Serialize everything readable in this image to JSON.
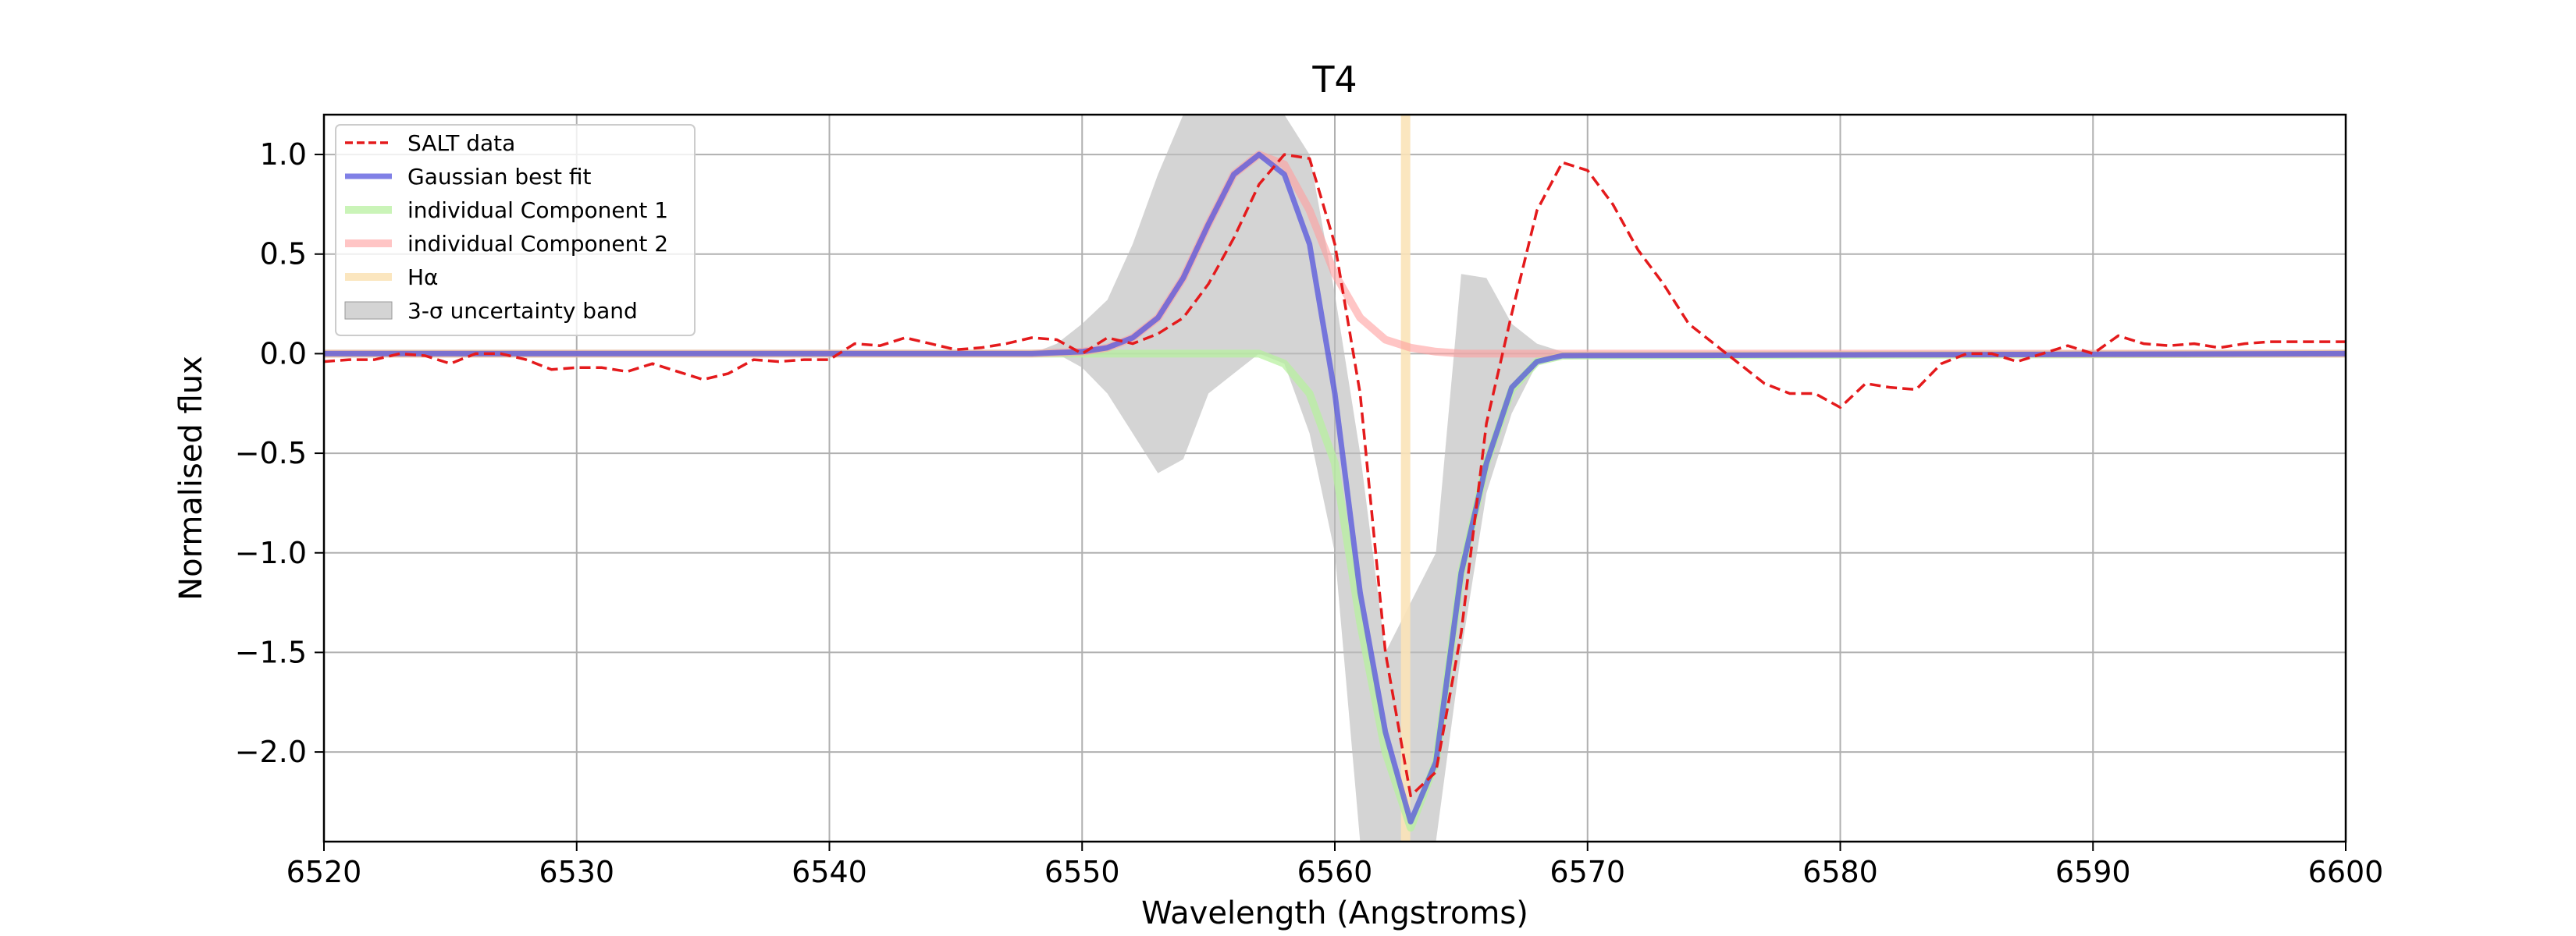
{
  "chart_data": {
    "type": "line",
    "title": "T4",
    "xlabel": "Wavelength (Angstroms)",
    "ylabel": "Normalised flux",
    "xlim": [
      6520,
      6600
    ],
    "ylim": [
      -2.45,
      1.2
    ],
    "xticks": [
      6520,
      6530,
      6540,
      6550,
      6560,
      6570,
      6580,
      6590,
      6600
    ],
    "xtick_labels": [
      "6520",
      "6530",
      "6540",
      "6550",
      "6560",
      "6570",
      "6580",
      "6590",
      "6600"
    ],
    "yticks": [
      1.0,
      0.5,
      0.0,
      -0.5,
      -1.0,
      -1.5,
      -2.0
    ],
    "ytick_labels": [
      "1.0",
      "0.5",
      "0.0",
      "−0.5",
      "−1.0",
      "−1.5",
      "−2.0"
    ],
    "grid": true,
    "legend_position": "top-left",
    "legend": [
      {
        "label": "SALT data",
        "style": "dashed",
        "color": "#e41a1c"
      },
      {
        "label": "Gaussian best fit",
        "style": "solid",
        "color": "#7b7be6"
      },
      {
        "label": "individual Component 1",
        "style": "solid",
        "color": "#c6f0b0"
      },
      {
        "label": "individual Component 2",
        "style": "solid",
        "color": "#ffb8b8"
      },
      {
        "label": "Hα",
        "style": "solid",
        "color": "#fde9c6"
      },
      {
        "label": "3-σ uncertainty band",
        "style": "patch",
        "color": "#d3d3d3"
      }
    ],
    "h_alpha": 6562.8,
    "band": {
      "x": [
        6520,
        6548,
        6549,
        6550,
        6551,
        6552,
        6553,
        6554,
        6555,
        6556,
        6557,
        6558,
        6559,
        6560,
        6561,
        6562,
        6563,
        6564,
        6565,
        6566,
        6567,
        6568,
        6569,
        6600
      ],
      "upper": [
        0.0,
        0.0,
        0.05,
        0.15,
        0.27,
        0.55,
        0.9,
        1.2,
        1.2,
        1.2,
        1.2,
        1.2,
        1.0,
        0.3,
        -0.5,
        -1.5,
        -1.25,
        -1.0,
        0.4,
        0.38,
        0.15,
        0.05,
        0.01,
        0.01
      ],
      "lower": [
        0.0,
        0.0,
        0.0,
        -0.07,
        -0.2,
        -0.4,
        -0.6,
        -0.53,
        -0.2,
        -0.1,
        0.0,
        -0.05,
        -0.4,
        -1.0,
        -2.45,
        -2.45,
        -2.45,
        -2.45,
        -1.5,
        -0.7,
        -0.3,
        -0.05,
        -0.01,
        -0.01
      ]
    },
    "series": [
      {
        "name": "SALT data",
        "x": [
          6520,
          6521,
          6522,
          6523,
          6524,
          6525,
          6526,
          6527,
          6528,
          6529,
          6530,
          6531,
          6532,
          6533,
          6534,
          6535,
          6536,
          6537,
          6538,
          6539,
          6540,
          6541,
          6542,
          6543,
          6544,
          6545,
          6546,
          6547,
          6548,
          6549,
          6550,
          6551,
          6552,
          6553,
          6554,
          6555,
          6556,
          6557,
          6558,
          6559,
          6560,
          6561,
          6562,
          6563,
          6564,
          6565,
          6566,
          6567,
          6568,
          6569,
          6570,
          6571,
          6572,
          6573,
          6574,
          6575,
          6576,
          6577,
          6578,
          6579,
          6580,
          6581,
          6582,
          6583,
          6584,
          6585,
          6586,
          6587,
          6588,
          6589,
          6590,
          6591,
          6592,
          6593,
          6594,
          6595,
          6596,
          6597,
          6598,
          6599,
          6600
        ],
        "y": [
          -0.04,
          -0.03,
          -0.03,
          0.0,
          -0.01,
          -0.05,
          0.0,
          0.0,
          -0.03,
          -0.08,
          -0.07,
          -0.07,
          -0.09,
          -0.05,
          -0.09,
          -0.13,
          -0.1,
          -0.03,
          -0.04,
          -0.03,
          -0.03,
          0.05,
          0.04,
          0.08,
          0.05,
          0.02,
          0.03,
          0.05,
          0.08,
          0.07,
          0.0,
          0.08,
          0.05,
          0.1,
          0.18,
          0.35,
          0.58,
          0.85,
          1.0,
          0.98,
          0.55,
          -0.2,
          -1.5,
          -2.22,
          -2.1,
          -1.4,
          -0.35,
          0.2,
          0.72,
          0.96,
          0.92,
          0.75,
          0.52,
          0.35,
          0.15,
          0.05,
          -0.05,
          -0.15,
          -0.2,
          -0.2,
          -0.27,
          -0.15,
          -0.17,
          -0.18,
          -0.05,
          0.0,
          0.0,
          -0.04,
          0.0,
          0.04,
          0.0,
          0.09,
          0.05,
          0.04,
          0.05,
          0.03,
          0.05,
          0.06,
          0.06,
          0.06,
          0.06
        ]
      },
      {
        "name": "Gaussian best fit",
        "x": [
          6520,
          6548,
          6550,
          6551,
          6552,
          6553,
          6554,
          6555,
          6556,
          6557,
          6558,
          6559,
          6560,
          6561,
          6562,
          6563,
          6564,
          6565,
          6566,
          6567,
          6568,
          6569,
          6600
        ],
        "y": [
          0.0,
          0.0,
          0.01,
          0.03,
          0.08,
          0.18,
          0.38,
          0.65,
          0.9,
          1.0,
          0.9,
          0.55,
          -0.2,
          -1.2,
          -1.9,
          -2.35,
          -2.05,
          -1.1,
          -0.55,
          -0.17,
          -0.04,
          -0.01,
          0.0
        ]
      },
      {
        "name": "individual Component 1",
        "x": [
          6520,
          6556,
          6557,
          6558,
          6559,
          6560,
          6561,
          6562,
          6563,
          6564,
          6565,
          6566,
          6567,
          6568,
          6569,
          6600
        ],
        "y": [
          0.0,
          0.0,
          0.0,
          -0.05,
          -0.2,
          -0.55,
          -1.35,
          -2.0,
          -2.38,
          -2.05,
          -1.1,
          -0.55,
          -0.18,
          -0.04,
          -0.01,
          0.0
        ]
      },
      {
        "name": "individual Component 2",
        "x": [
          6520,
          6548,
          6550,
          6551,
          6552,
          6553,
          6554,
          6555,
          6556,
          6557,
          6558,
          6559,
          6560,
          6561,
          6562,
          6563,
          6564,
          6565,
          6566,
          6567,
          6600
        ],
        "y": [
          0.0,
          0.0,
          0.01,
          0.03,
          0.08,
          0.18,
          0.38,
          0.65,
          0.9,
          1.0,
          0.95,
          0.72,
          0.4,
          0.18,
          0.07,
          0.03,
          0.01,
          0.0,
          0.0,
          0.0,
          0.0
        ]
      }
    ]
  }
}
